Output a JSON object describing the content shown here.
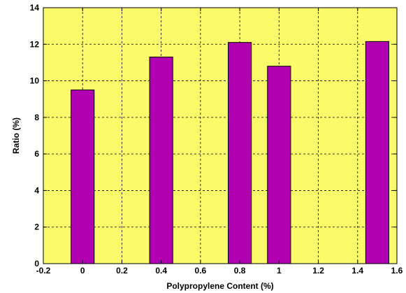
{
  "colors": {
    "plot_background": "#fafa6a",
    "bar_fill": "#b000b0",
    "grid": "#000000"
  },
  "chart_data": {
    "type": "bar",
    "x": [
      0,
      0.4,
      0.8,
      1,
      1.5
    ],
    "values": [
      9.5,
      11.3,
      12.1,
      10.8,
      12.15
    ],
    "xlabel": "Polypropylene Content (%)",
    "ylabel": "Ratio (%)",
    "xlim": [
      -0.2,
      1.6
    ],
    "ylim": [
      0,
      14
    ],
    "xticks": [
      "-0.2",
      "0",
      "0.2",
      "0.4",
      "0.6",
      "0.8",
      "1",
      "1.2",
      "1.4",
      "1.6"
    ],
    "yticks": [
      "0",
      "2",
      "4",
      "6",
      "8",
      "10",
      "12",
      "14"
    ],
    "grid": true,
    "legend": "none"
  }
}
